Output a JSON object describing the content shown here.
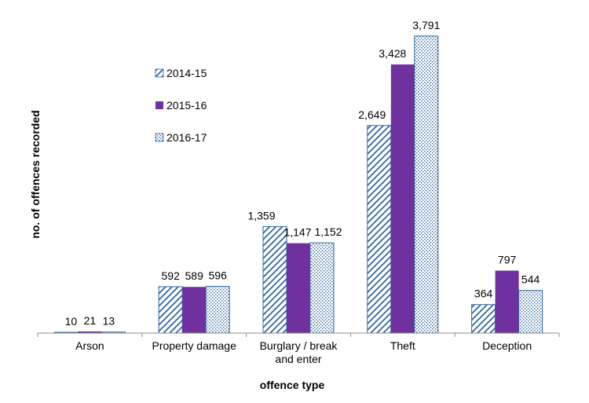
{
  "chart_data": {
    "type": "bar",
    "title": "",
    "xlabel": "offence type",
    "ylabel": "no. of offences recorded",
    "categories": [
      [
        "Arson"
      ],
      [
        "Property damage"
      ],
      [
        "Burglary / break",
        "and enter"
      ],
      [
        "Theft"
      ],
      [
        "Deception"
      ]
    ],
    "category_names": [
      "Arson",
      "Property damage",
      "Burglary / break and enter",
      "Theft",
      "Deception"
    ],
    "series": [
      {
        "name": "2014-15",
        "values": [
          10,
          592,
          1359,
          2649,
          364
        ],
        "labels": [
          "10",
          "592",
          "1,359",
          "2,649",
          "364"
        ],
        "pattern": "diagonal-hatch",
        "color": "#31689E"
      },
      {
        "name": "2015-16",
        "values": [
          21,
          589,
          1147,
          3428,
          797
        ],
        "labels": [
          "21",
          "589",
          "1,147",
          "3,428",
          "797"
        ],
        "pattern": "solid",
        "color": "#7030A0"
      },
      {
        "name": "2016-17",
        "values": [
          13,
          596,
          1152,
          3791,
          544
        ],
        "labels": [
          "13",
          "596",
          "1,152",
          "3,791",
          "544"
        ],
        "pattern": "dotted-fill",
        "color": "#31689E"
      }
    ],
    "ylim": [
      0,
      4000
    ],
    "grid": false,
    "legend_position": "upper-left inside plot"
  }
}
